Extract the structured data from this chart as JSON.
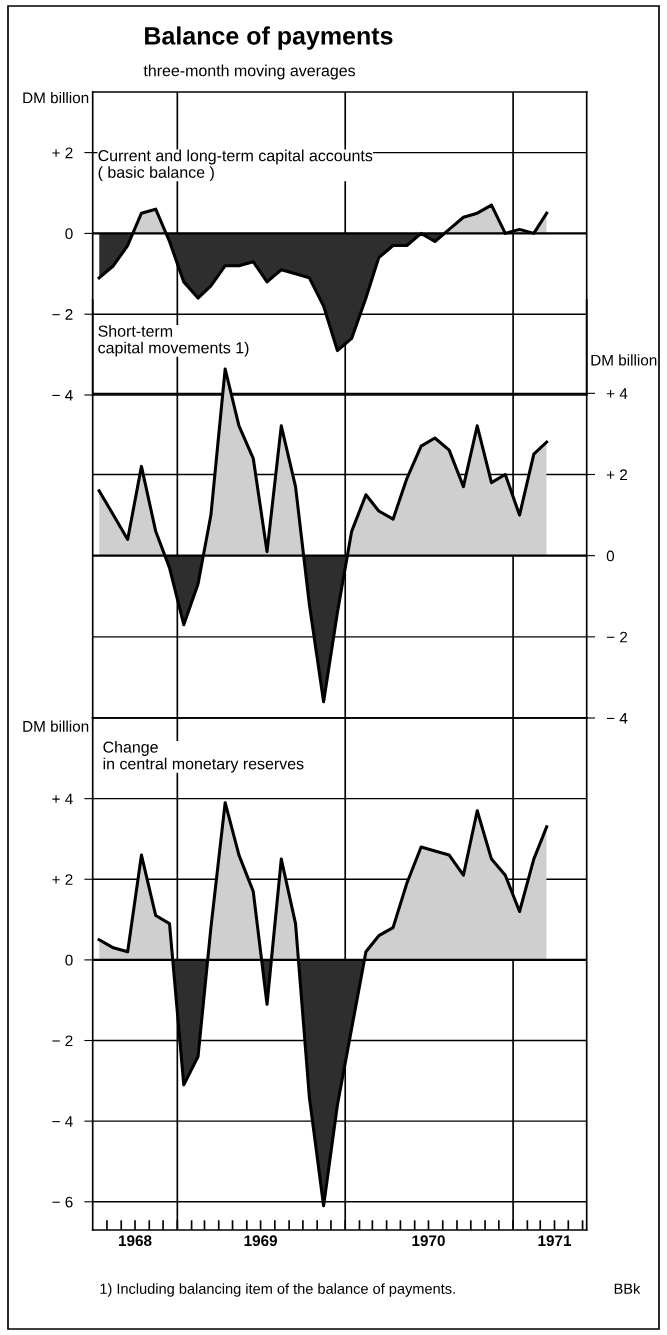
{
  "chart_data": [
    {
      "type": "area",
      "title": "Balance of payments",
      "subtitle": "three-month moving averages",
      "ylabel": "DM billion",
      "x": [
        "1968-07-15",
        "1968-08-15",
        "1968-09-15",
        "1968-10-15",
        "1968-11-15",
        "1968-12-15",
        "1969-01-15",
        "1969-02-15",
        "1969-03-15",
        "1969-04-15",
        "1969-05-15",
        "1969-06-15",
        "1969-07-15",
        "1969-08-15",
        "1969-09-15",
        "1969-10-15",
        "1969-11-15",
        "1969-12-15",
        "1970-01-15",
        "1970-02-15",
        "1970-03-15",
        "1970-04-15",
        "1970-05-15",
        "1970-06-15",
        "1970-07-15",
        "1970-08-15",
        "1970-09-15",
        "1970-10-15",
        "1970-11-15",
        "1970-12-15",
        "1971-01-15",
        "1971-02-15",
        "1971-03-15"
      ],
      "xlim": [
        "1968-07-01",
        "1971-06-10"
      ],
      "series": [
        {
          "name": "Current and long-term capital accounts\n( basic balance )",
          "color": "#000000",
          "values": [
            -1.1,
            -0.8,
            -0.3,
            0.5,
            0.6,
            -0.2,
            -1.2,
            -1.6,
            -1.3,
            -0.8,
            -0.8,
            -0.7,
            -1.2,
            -0.9,
            -1.0,
            -1.1,
            -1.8,
            -2.9,
            -2.6,
            -1.6,
            -0.6,
            -0.3,
            -0.3,
            0.0,
            -0.2,
            0.1,
            0.4,
            0.5,
            0.7,
            0.0,
            0.1,
            0.0,
            0.5
          ]
        }
      ],
      "ylim": [
        -4,
        3.5
      ],
      "yticks": [
        {
          "value": 2,
          "label": "+ 2"
        },
        0,
        {
          "value": -2,
          "label": "− 2"
        },
        {
          "value": -4,
          "label": "− 4"
        }
      ],
      "grid": "y",
      "tick_labels": "y",
      "ref_lines": [
        {
          "axis": "x",
          "value": "1969-01-01",
          "color": "#000000"
        },
        {
          "axis": "x",
          "value": "1970-01-01",
          "color": "#000000"
        },
        {
          "axis": "x",
          "value": "1971-01-01",
          "color": "#000000"
        }
      ]
    },
    {
      "type": "area",
      "y2label": "DM billion",
      "x": [
        "1968-07-15",
        "1968-08-15",
        "1968-09-15",
        "1968-10-15",
        "1968-11-15",
        "1968-12-15",
        "1969-01-15",
        "1969-02-15",
        "1969-03-15",
        "1969-04-15",
        "1969-05-15",
        "1969-06-15",
        "1969-07-15",
        "1969-08-15",
        "1969-09-15",
        "1969-10-15",
        "1969-11-15",
        "1969-12-15",
        "1970-01-15",
        "1970-02-15",
        "1970-03-15",
        "1970-04-15",
        "1970-05-15",
        "1970-06-15",
        "1970-07-15",
        "1970-08-15",
        "1970-09-15",
        "1970-10-15",
        "1970-11-15",
        "1970-12-15",
        "1971-01-15",
        "1971-02-15",
        "1971-03-15"
      ],
      "xlim": [
        "1968-07-01",
        "1971-06-10"
      ],
      "series": [
        {
          "name": "Short-term\ncapital movements 1)",
          "color": "#000000",
          "axis": "y2",
          "values": [
            1.6,
            1.0,
            0.4,
            2.2,
            0.6,
            -0.3,
            -1.7,
            -0.7,
            1.0,
            4.6,
            3.2,
            2.4,
            0.1,
            3.2,
            1.7,
            -1.2,
            -3.6,
            -1.4,
            0.6,
            1.5,
            1.1,
            0.9,
            1.9,
            2.7,
            2.9,
            2.6,
            1.7,
            3.2,
            1.8,
            2.0,
            1.0,
            2.5,
            2.8
          ]
        }
      ],
      "y2lim": [
        -4,
        6.3
      ],
      "y2ticks": [
        {
          "value": 4,
          "label": "+ 4"
        },
        {
          "value": 2,
          "label": "+ 2"
        },
        0,
        {
          "value": -2,
          "label": "− 2"
        },
        {
          "value": -4,
          "label": "− 4"
        }
      ],
      "grid": "y",
      "tick_labels": "y",
      "ref_lines": [
        {
          "axis": "x",
          "value": "1969-01-01",
          "color": "#000000"
        },
        {
          "axis": "x",
          "value": "1970-01-01",
          "color": "#000000"
        },
        {
          "axis": "x",
          "value": "1971-01-01",
          "color": "#000000"
        }
      ]
    },
    {
      "type": "area",
      "ylabel": "DM billion",
      "x": [
        "1968-07-15",
        "1968-08-15",
        "1968-09-15",
        "1968-10-15",
        "1968-11-15",
        "1968-12-15",
        "1969-01-15",
        "1969-02-15",
        "1969-03-15",
        "1969-04-15",
        "1969-05-15",
        "1969-06-15",
        "1969-07-15",
        "1969-08-15",
        "1969-09-15",
        "1969-10-15",
        "1969-11-15",
        "1969-12-15",
        "1970-01-15",
        "1970-02-15",
        "1970-03-15",
        "1970-04-15",
        "1970-05-15",
        "1970-06-15",
        "1970-07-15",
        "1970-08-15",
        "1970-09-15",
        "1970-10-15",
        "1970-11-15",
        "1970-12-15",
        "1971-01-15",
        "1971-02-15",
        "1971-03-15"
      ],
      "xlim": [
        "1968-07-01",
        "1971-06-10"
      ],
      "xticks": [
        {
          "value": "1968-08-01",
          "label": null
        },
        {
          "value": "1968-09-01",
          "label": null
        },
        {
          "value": "1968-10-01",
          "label": "1968"
        },
        {
          "value": "1968-11-01",
          "label": null
        },
        {
          "value": "1968-12-01",
          "label": null
        },
        {
          "value": "1969-01-01",
          "label": null
        },
        {
          "value": "1969-02-01",
          "label": null
        },
        {
          "value": "1969-03-01",
          "label": null
        },
        {
          "value": "1969-04-01",
          "label": null
        },
        {
          "value": "1969-05-01",
          "label": null
        },
        {
          "value": "1969-06-01",
          "label": null
        },
        {
          "value": "1969-07-01",
          "label": "1969"
        },
        {
          "value": "1969-08-01",
          "label": null
        },
        {
          "value": "1969-09-01",
          "label": null
        },
        {
          "value": "1969-10-01",
          "label": null
        },
        {
          "value": "1969-11-01",
          "label": null
        },
        {
          "value": "1969-12-01",
          "label": null
        },
        {
          "value": "1970-01-01",
          "label": null
        },
        {
          "value": "1970-02-01",
          "label": null
        },
        {
          "value": "1970-03-01",
          "label": null
        },
        {
          "value": "1970-04-01",
          "label": null
        },
        {
          "value": "1970-05-01",
          "label": null
        },
        {
          "value": "1970-06-01",
          "label": null
        },
        {
          "value": "1970-07-01",
          "label": "1970"
        },
        {
          "value": "1970-08-01",
          "label": null
        },
        {
          "value": "1970-09-01",
          "label": null
        },
        {
          "value": "1970-10-01",
          "label": null
        },
        {
          "value": "1970-11-01",
          "label": null
        },
        {
          "value": "1970-12-01",
          "label": null
        },
        {
          "value": "1971-01-01",
          "label": null
        },
        {
          "value": "1971-02-01",
          "label": null
        },
        {
          "value": "1971-03-01",
          "label": null
        },
        {
          "value": "1971-04-01",
          "label": "1971"
        },
        {
          "value": "1971-05-01",
          "label": null
        },
        {
          "value": "1971-06-01",
          "label": null
        }
      ],
      "series": [
        {
          "name": "Change\nin central monetary reserves",
          "color": "#000000",
          "values": [
            0.5,
            0.3,
            0.2,
            2.6,
            1.1,
            0.9,
            -3.1,
            -2.4,
            0.8,
            3.9,
            2.6,
            1.7,
            -1.1,
            2.5,
            0.9,
            -3.4,
            -6.1,
            -3.6,
            -1.7,
            0.2,
            0.6,
            0.8,
            1.9,
            2.8,
            2.7,
            2.6,
            2.1,
            3.7,
            2.5,
            2.1,
            1.2,
            2.5,
            3.3
          ]
        }
      ],
      "ylim": [
        -6.7,
        6.0
      ],
      "yticks": [
        {
          "value": 4,
          "label": "+ 4"
        },
        {
          "value": 2,
          "label": "+ 2"
        },
        0,
        {
          "value": -2,
          "label": "− 2"
        },
        {
          "value": -4,
          "label": "− 4"
        },
        {
          "value": -6,
          "label": "− 6"
        }
      ],
      "grid": "y",
      "ref_lines": [
        {
          "axis": "x",
          "value": "1969-01-01",
          "color": "#000000"
        },
        {
          "axis": "x",
          "value": "1970-01-01",
          "color": "#000000"
        },
        {
          "axis": "x",
          "value": "1971-01-01",
          "color": "#000000"
        }
      ],
      "annotations": [
        "1) Including balancing item of the balance of payments.",
        "BBk"
      ]
    }
  ]
}
